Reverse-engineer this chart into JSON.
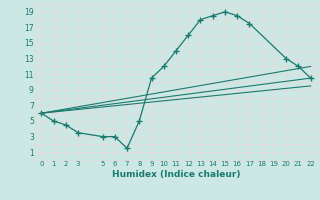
{
  "xlabel": "Humidex (Indice chaleur)",
  "background_color": "#cce8e5",
  "grid_color": "#e8d8d8",
  "line_color": "#1a7a6e",
  "xlim": [
    -0.5,
    22.5
  ],
  "ylim": [
    0,
    20
  ],
  "curve": {
    "x": [
      0,
      1,
      2,
      3,
      5,
      6,
      7,
      8,
      9,
      10,
      11,
      12,
      13,
      14,
      15,
      16,
      17,
      20,
      21,
      22
    ],
    "y": [
      6,
      5,
      4.5,
      3.5,
      3.0,
      3.0,
      1.5,
      5.0,
      10.5,
      12.0,
      14.0,
      16.0,
      18.0,
      18.5,
      19.0,
      18.5,
      17.5,
      13.0,
      12.0,
      10.5
    ]
  },
  "diag_lines": [
    {
      "x": [
        0,
        22
      ],
      "y": [
        6,
        12.0
      ]
    },
    {
      "x": [
        0,
        22
      ],
      "y": [
        6,
        10.5
      ]
    },
    {
      "x": [
        0,
        22
      ],
      "y": [
        6,
        9.5
      ]
    }
  ]
}
